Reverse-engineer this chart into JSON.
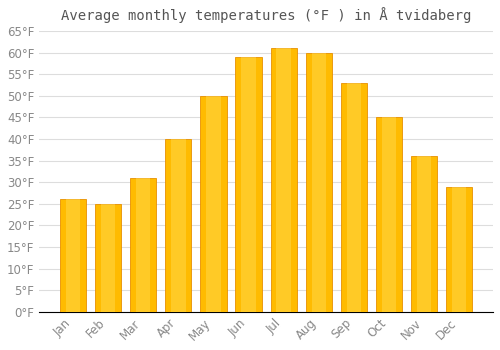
{
  "title": "Average monthly temperatures (°F ) in Å tvidaberg",
  "months": [
    "Jan",
    "Feb",
    "Mar",
    "Apr",
    "May",
    "Jun",
    "Jul",
    "Aug",
    "Sep",
    "Oct",
    "Nov",
    "Dec"
  ],
  "values": [
    26,
    25,
    31,
    40,
    50,
    59,
    61,
    60,
    53,
    45,
    36,
    29
  ],
  "bar_color": "#FFBB00",
  "bar_edge_color": "#E89000",
  "background_color": "#FFFFFF",
  "grid_color": "#DDDDDD",
  "ylim": [
    0,
    65
  ],
  "yticks": [
    0,
    5,
    10,
    15,
    20,
    25,
    30,
    35,
    40,
    45,
    50,
    55,
    60,
    65
  ],
  "title_fontsize": 10,
  "tick_fontsize": 8.5,
  "tick_color": "#888888",
  "title_color": "#555555"
}
